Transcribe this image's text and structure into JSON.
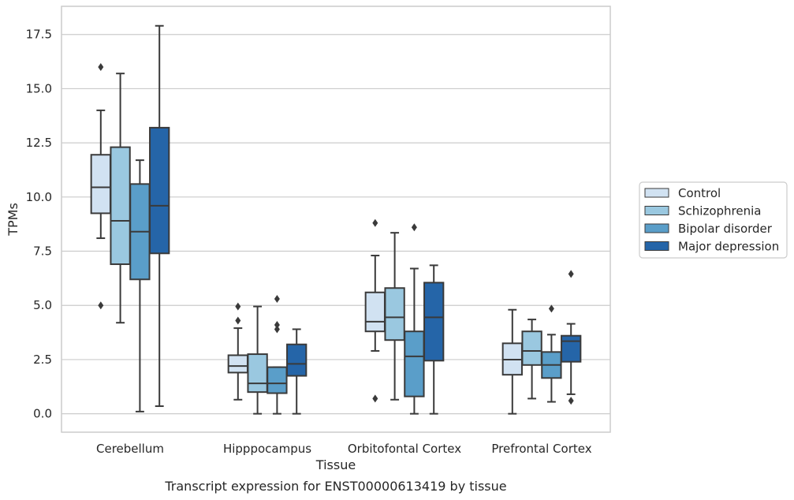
{
  "chart_data": {
    "type": "box",
    "title": "",
    "caption": "Transcript expression for ENST00000613419 by tissue",
    "xlabel": "Tissue",
    "ylabel": "TPMs",
    "ylim": [
      -0.85,
      18.8
    ],
    "yticks": [
      "0.0",
      "2.5",
      "5.0",
      "7.5",
      "10.0",
      "12.5",
      "15.0",
      "17.5"
    ],
    "categories": [
      "Cerebellum",
      "Hipppocampus",
      "Orbitofontal Cortex",
      "Prefrontal Cortex"
    ],
    "grid": "horizontal",
    "legend_position": "right",
    "series": [
      {
        "name": "Control",
        "color": "#d1e2f2",
        "boxes": [
          {
            "whisker_low": 8.1,
            "q1": 9.25,
            "median": 10.45,
            "q3": 11.95,
            "whisker_high": 14.0,
            "outliers": [
              16.0,
              5.0
            ]
          },
          {
            "whisker_low": 0.65,
            "q1": 1.9,
            "median": 2.2,
            "q3": 2.7,
            "whisker_high": 3.95,
            "outliers": [
              4.95,
              4.3
            ]
          },
          {
            "whisker_low": 2.9,
            "q1": 3.8,
            "median": 4.25,
            "q3": 5.6,
            "whisker_high": 7.3,
            "outliers": [
              8.8,
              0.7
            ]
          },
          {
            "whisker_low": 0.0,
            "q1": 1.8,
            "median": 2.5,
            "q3": 3.25,
            "whisker_high": 4.8,
            "outliers": []
          }
        ]
      },
      {
        "name": "Schizophrenia",
        "color": "#9ac8e0",
        "boxes": [
          {
            "whisker_low": 4.2,
            "q1": 6.9,
            "median": 8.9,
            "q3": 12.3,
            "whisker_high": 15.7,
            "outliers": []
          },
          {
            "whisker_low": 0.0,
            "q1": 1.0,
            "median": 1.4,
            "q3": 2.75,
            "whisker_high": 4.95,
            "outliers": []
          },
          {
            "whisker_low": 0.65,
            "q1": 3.4,
            "median": 4.45,
            "q3": 5.8,
            "whisker_high": 8.35,
            "outliers": []
          },
          {
            "whisker_low": 0.7,
            "q1": 2.25,
            "median": 2.9,
            "q3": 3.8,
            "whisker_high": 4.35,
            "outliers": []
          }
        ]
      },
      {
        "name": "Bipolar disorder",
        "color": "#5a9ec9",
        "boxes": [
          {
            "whisker_low": 0.1,
            "q1": 6.2,
            "median": 8.4,
            "q3": 10.6,
            "whisker_high": 11.7,
            "outliers": []
          },
          {
            "whisker_low": 0.0,
            "q1": 0.95,
            "median": 1.4,
            "q3": 2.15,
            "whisker_high": 2.15,
            "outliers": [
              5.3,
              4.1,
              3.9
            ]
          },
          {
            "whisker_low": 0.0,
            "q1": 0.8,
            "median": 2.65,
            "q3": 3.8,
            "whisker_high": 6.7,
            "outliers": [
              8.6
            ]
          },
          {
            "whisker_low": 0.55,
            "q1": 1.65,
            "median": 2.25,
            "q3": 2.85,
            "whisker_high": 3.65,
            "outliers": [
              4.85
            ]
          }
        ]
      },
      {
        "name": "Major depression",
        "color": "#2565a8",
        "boxes": [
          {
            "whisker_low": 0.35,
            "q1": 7.4,
            "median": 9.6,
            "q3": 13.2,
            "whisker_high": 17.9,
            "outliers": []
          },
          {
            "whisker_low": 0.0,
            "q1": 1.75,
            "median": 2.3,
            "q3": 3.2,
            "whisker_high": 3.9,
            "outliers": []
          },
          {
            "whisker_low": 0.0,
            "q1": 2.45,
            "median": 4.45,
            "q3": 6.05,
            "whisker_high": 6.85,
            "outliers": []
          },
          {
            "whisker_low": 0.9,
            "q1": 2.4,
            "median": 3.35,
            "q3": 3.6,
            "whisker_high": 4.15,
            "outliers": [
              6.45,
              0.6
            ]
          }
        ]
      }
    ]
  }
}
